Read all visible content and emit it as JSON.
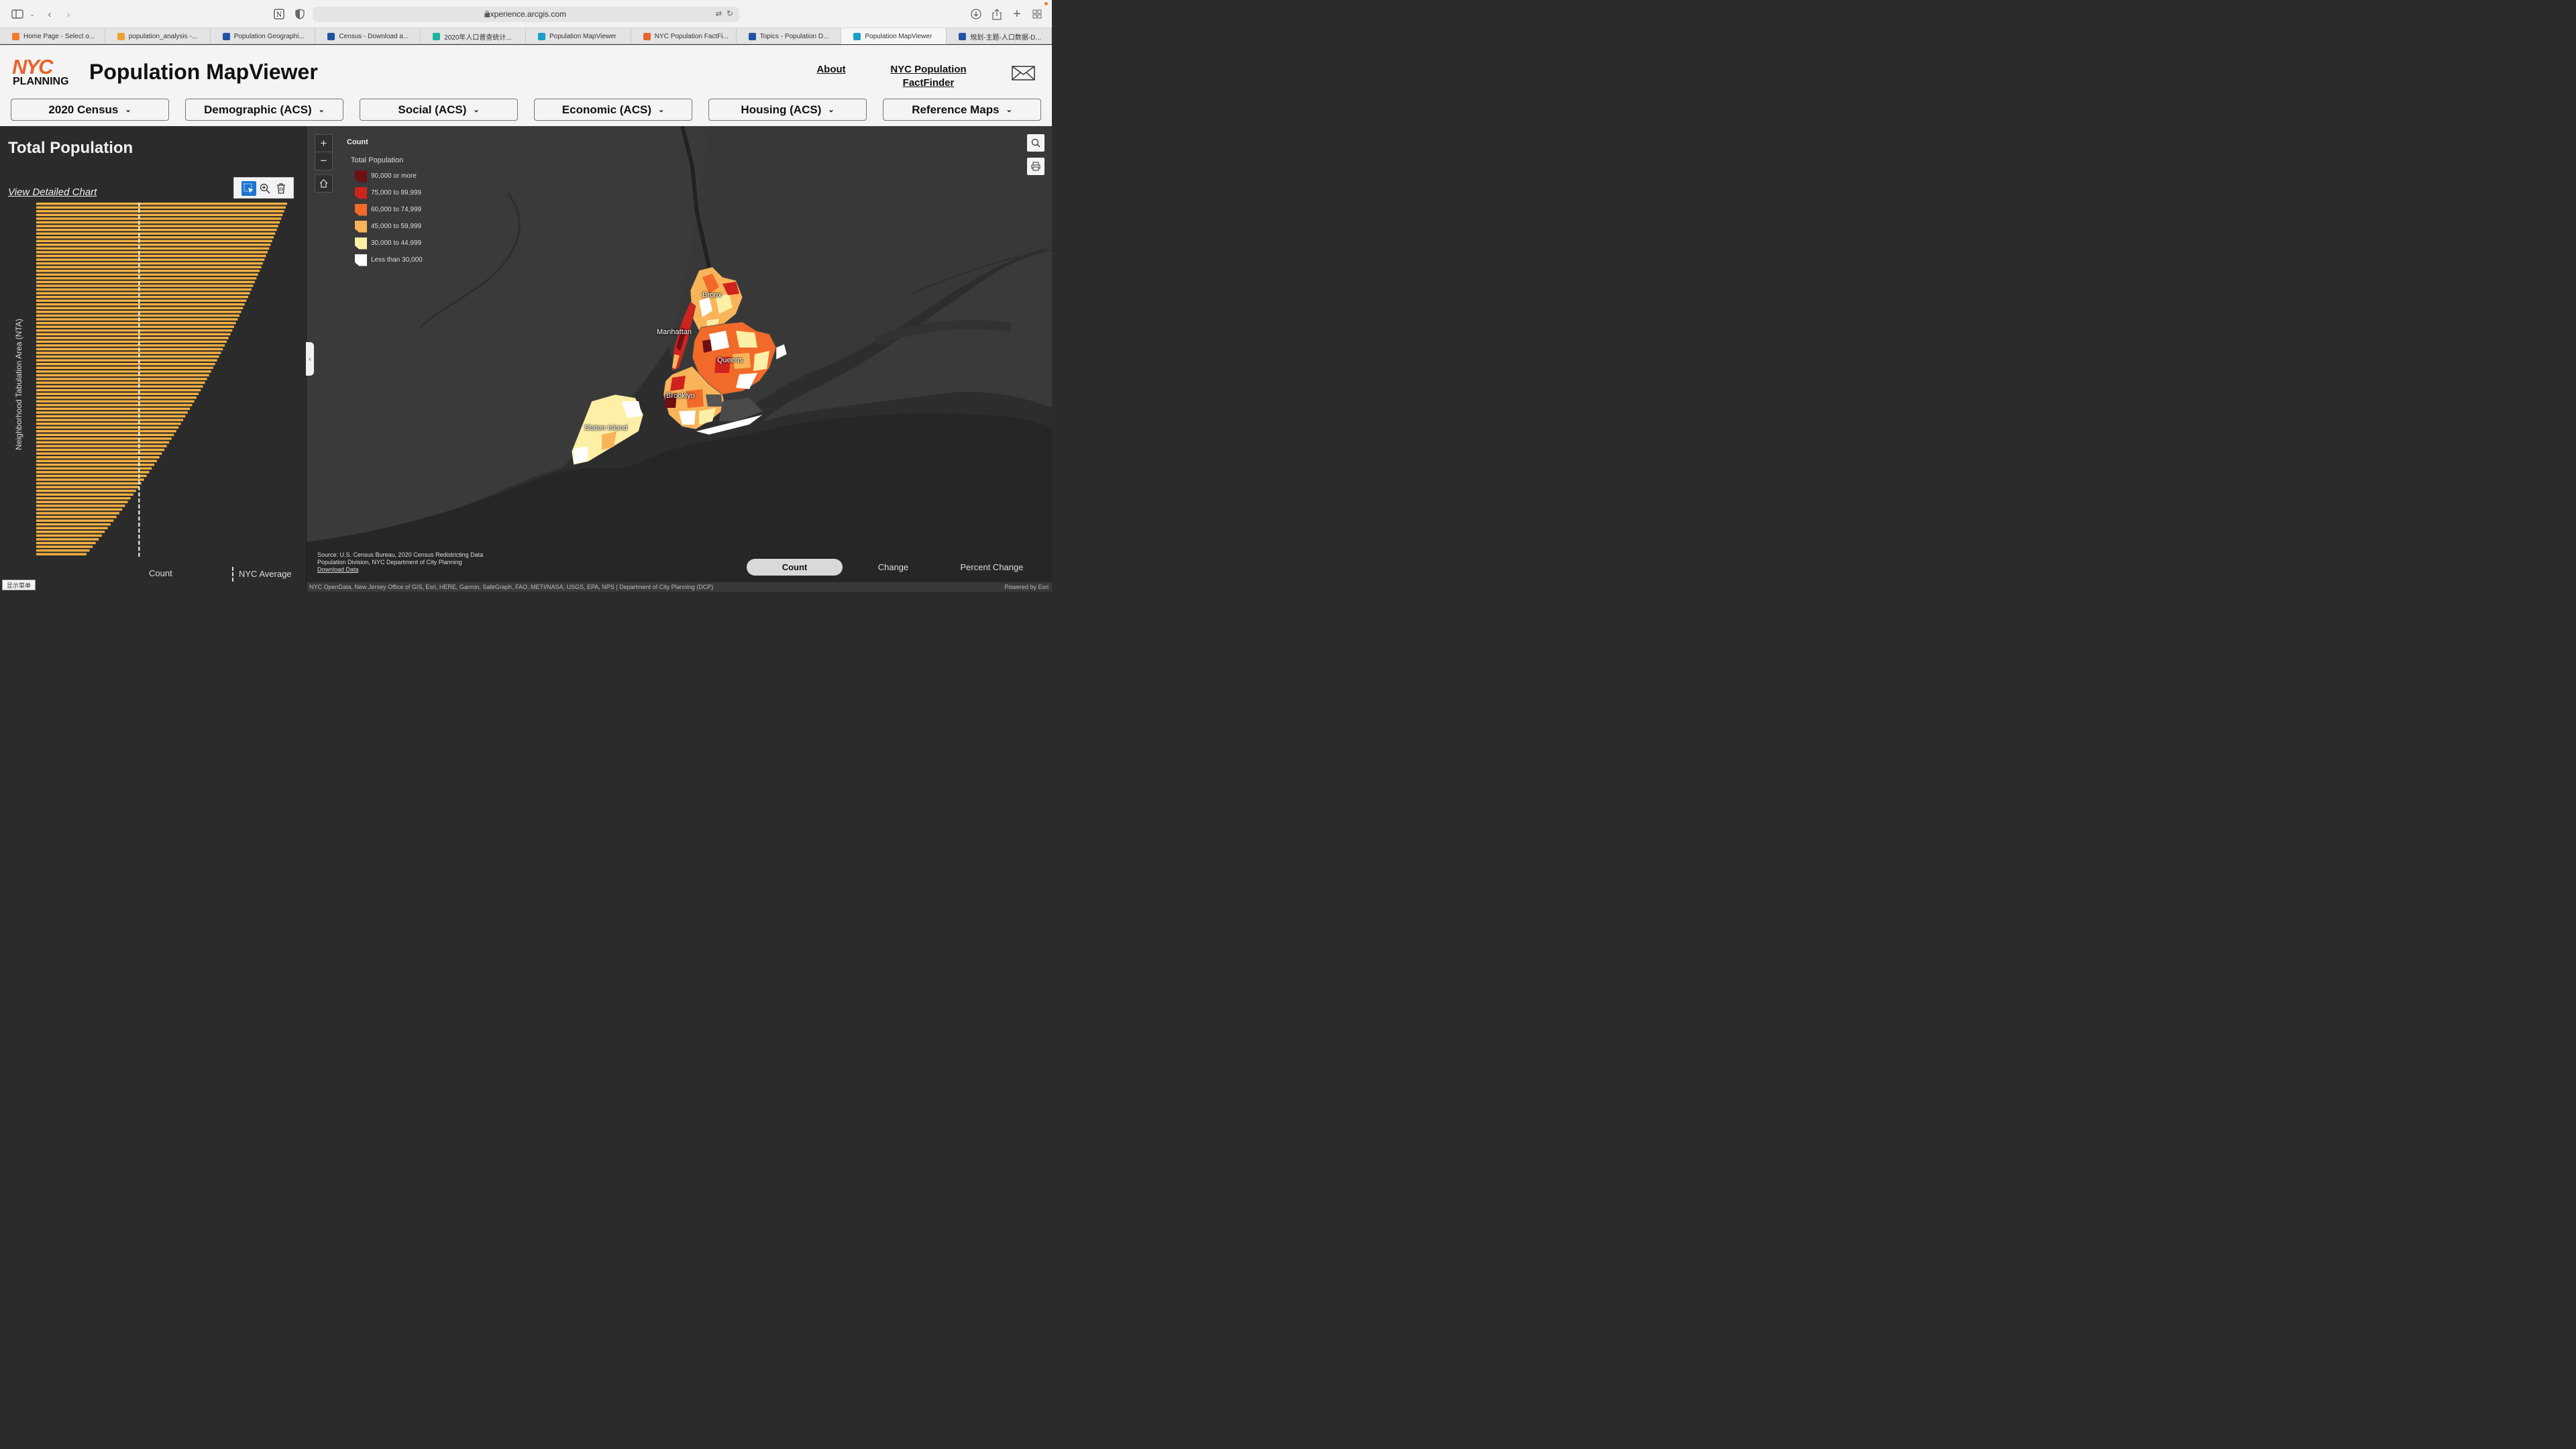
{
  "browser": {
    "url": "experience.arcgis.com",
    "tabs": [
      {
        "label": "Home Page - Select o...",
        "icon": "loading-icon",
        "color": "#f07b2e"
      },
      {
        "label": "population_analysis -...",
        "icon": "notebook-icon",
        "color": "#f0a030"
      },
      {
        "label": "Population Geographi...",
        "icon": "nyc-icon",
        "color": "#2453a4"
      },
      {
        "label": "Census - Download a...",
        "icon": "nyc-icon",
        "color": "#2453a4"
      },
      {
        "label": "2020年人口普查统计...",
        "icon": "doc-icon",
        "color": "#1db4a0"
      },
      {
        "label": "Population MapViewer",
        "icon": "arcgis-icon",
        "color": "#1a9fc9"
      },
      {
        "label": "NYC Population FactFi...",
        "icon": "nyc-planning-icon",
        "color": "#e8632c"
      },
      {
        "label": "Topics - Population D...",
        "icon": "nyc-icon",
        "color": "#2453a4"
      },
      {
        "label": "Population MapViewer",
        "icon": "arcgis-icon",
        "color": "#1a9fc9",
        "active": true
      },
      {
        "label": "规划-主题-人口数据-D...",
        "icon": "nyc-icon",
        "color": "#2453a4"
      }
    ]
  },
  "site": {
    "logo_word": "NYC",
    "logo_sub": "PLANNING",
    "title": "Population MapViewer",
    "about": "About",
    "factfinder_line1": "NYC Population",
    "factfinder_line2": "FactFinder"
  },
  "nav": [
    "2020 Census",
    "Demographic (ACS)",
    "Social (ACS)",
    "Economic (ACS)",
    "Housing (ACS)",
    "Reference Maps"
  ],
  "panel": {
    "title": "Total Population",
    "detail_link": "View Detailed Chart",
    "y_axis_label": "Neighborhood Tabulation Area (NTA)",
    "x_axis_label": "Count",
    "avg_legend": "NYC Average",
    "menu_button": "显示菜单"
  },
  "chart_data": {
    "type": "bar",
    "orientation": "horizontal",
    "sorted": "descending",
    "bar_count": 95,
    "x_max_relative": 1.0,
    "nyc_average_relative": 0.41,
    "bar_color": "#f5b041",
    "average_line_color": "#ffffff",
    "xlabel": "Count",
    "ylabel": "Neighborhood Tabulation Area (NTA)"
  },
  "map": {
    "legend_title": "Count",
    "legend_subtitle": "Total Population",
    "legend_items": [
      {
        "label": "90,000 or more",
        "color": "#6e0f12"
      },
      {
        "label": "75,000 to 89,999",
        "color": "#d0231d"
      },
      {
        "label": "60,000 to 74,999",
        "color": "#f26a29"
      },
      {
        "label": "45,000 to 59,999",
        "color": "#f9b459"
      },
      {
        "label": "30,000 to 44,999",
        "color": "#fdf0a6"
      },
      {
        "label": "Less than 30,000",
        "color": "#ffffff"
      }
    ],
    "labels": {
      "bronx": "Bronx",
      "manhattan": "Manhattan",
      "queens": "Queens",
      "brooklyn": "Brooklyn",
      "staten": "Staten Island"
    },
    "source_line1": "Source: U.S. Census Bureau, 2020 Census Redistricting Data",
    "source_line2": "Population Division, NYC Department of City Planning",
    "download": "Download Data",
    "modes": [
      "Count",
      "Change",
      "Percent Change"
    ],
    "attribution": "NYC OpenData, New Jersey Office of GIS, Esri, HERE, Garmin, SafeGraph, FAO, METI/NASA, USGS, EPA, NPS | Department of City Planning (DCP)",
    "powered": "Powered by Esri"
  }
}
